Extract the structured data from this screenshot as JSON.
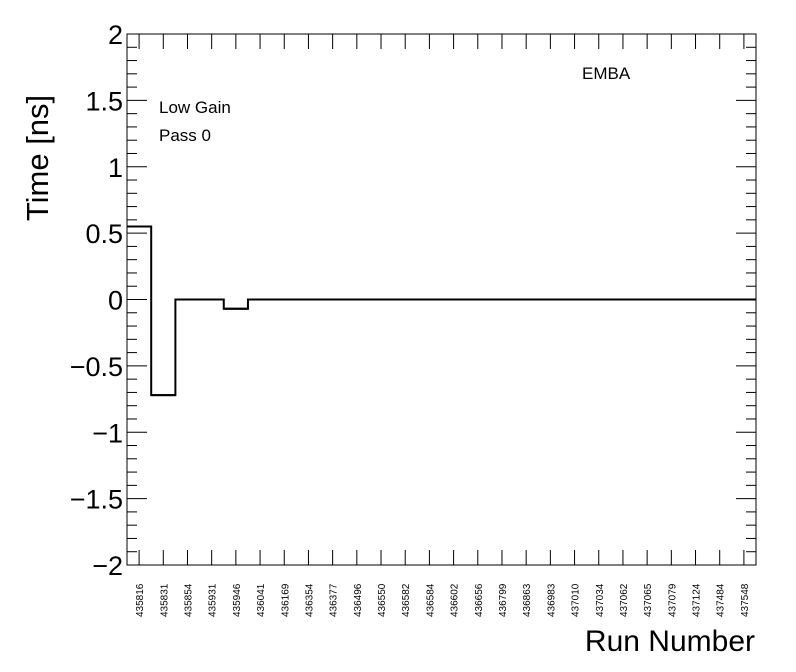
{
  "chart_data": {
    "type": "line",
    "step": true,
    "xlabel": "Run Number",
    "ylabel": "Time [ns]",
    "ylim": [
      -2,
      2
    ],
    "yticks": [
      -2,
      -1.5,
      -1,
      -0.5,
      0,
      0.5,
      1,
      1.5,
      2
    ],
    "ytick_labels": [
      "−2",
      "−1.5",
      "−1",
      "−0.5",
      "0",
      "0.5",
      "1",
      "1.5",
      "2"
    ],
    "grid": false,
    "categories": [
      "435816",
      "435831",
      "435854",
      "435931",
      "435946",
      "436041",
      "436169",
      "436354",
      "436377",
      "436496",
      "436550",
      "436582",
      "436584",
      "436602",
      "436656",
      "436799",
      "436863",
      "436983",
      "437010",
      "437034",
      "437062",
      "437065",
      "437079",
      "437124",
      "437484",
      "437548"
    ],
    "values": [
      0.55,
      -0.72,
      0,
      0,
      -0.07,
      0,
      0,
      0,
      0,
      0,
      0,
      0,
      0,
      0,
      0,
      0,
      0,
      0,
      0,
      0,
      0,
      0,
      0,
      0,
      0,
      0
    ],
    "annotations": [
      "EMBA",
      "Low Gain",
      "Pass 0"
    ]
  }
}
